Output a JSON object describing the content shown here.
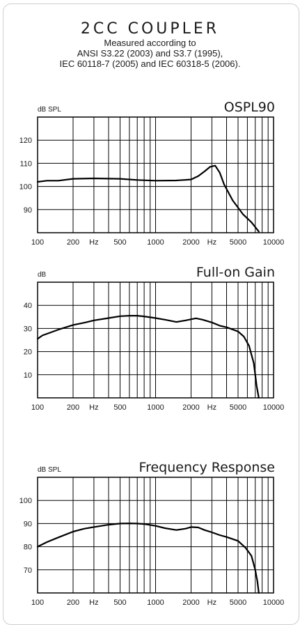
{
  "header": {
    "title": "2CC COUPLER",
    "subtitle_lines": [
      "Measured according to",
      "ANSI S3.22 (2003) and S3.7 (1995),",
      "IEC 60118-7 (2005) and IEC 60318-5 (2006)."
    ]
  },
  "chart_data": [
    {
      "type": "line",
      "title": "OSPL90",
      "ylabel": "dB SPL",
      "xscale": "log",
      "xlim": [
        100,
        10000
      ],
      "ylim": [
        80,
        130
      ],
      "grid": true,
      "x_tick_labels": [
        "100",
        "200",
        "Hz",
        "500",
        "1000",
        "2000",
        "Hz",
        "5000",
        "10000"
      ],
      "y_ticks": [
        90,
        100,
        110,
        120
      ],
      "series": [
        {
          "x": [
            100,
            120,
            150,
            200,
            300,
            500,
            700,
            1000,
            1500,
            2000,
            2300,
            2600,
            2900,
            3200,
            3500,
            3800,
            4500,
            5500,
            6500,
            7500
          ],
          "y": [
            102,
            102.5,
            102.5,
            103.3,
            103.5,
            103.3,
            102.8,
            102.5,
            102.6,
            103,
            104.5,
            106.5,
            108.5,
            109,
            106,
            101,
            94,
            88,
            84.5,
            80.5
          ]
        }
      ]
    },
    {
      "type": "line",
      "title": "Full-on Gain",
      "ylabel": "dB",
      "xscale": "log",
      "xlim": [
        100,
        10000
      ],
      "ylim": [
        0,
        50
      ],
      "grid": true,
      "x_tick_labels": [
        "100",
        "200",
        "Hz",
        "500",
        "1000",
        "2000",
        "Hz",
        "5000",
        "10000"
      ],
      "y_ticks": [
        10,
        20,
        30,
        40
      ],
      "series": [
        {
          "x": [
            100,
            110,
            125,
            150,
            200,
            250,
            300,
            400,
            500,
            600,
            700,
            800,
            1000,
            1200,
            1500,
            1800,
            2200,
            2500,
            3000,
            3500,
            4000,
            5000,
            5600,
            6200,
            6800,
            7200,
            7500
          ],
          "y": [
            25.5,
            27,
            28,
            29.5,
            31.5,
            32.5,
            33.5,
            34.5,
            35.3,
            35.5,
            35.5,
            35.2,
            34.5,
            33.8,
            32.8,
            33.5,
            34.4,
            33.8,
            32.6,
            31.2,
            30.5,
            28.7,
            26.5,
            22.5,
            15,
            5,
            0
          ]
        }
      ]
    },
    {
      "type": "line",
      "title": "Frequency Response",
      "ylabel": "dB SPL",
      "xscale": "log",
      "xlim": [
        100,
        10000
      ],
      "ylim": [
        60,
        110
      ],
      "grid": true,
      "x_tick_labels": [
        "100",
        "200",
        "Hz",
        "500",
        "1000",
        "2000",
        "Hz",
        "5000",
        "10000"
      ],
      "y_ticks": [
        70,
        80,
        90,
        100
      ],
      "series": [
        {
          "x": [
            100,
            120,
            150,
            200,
            250,
            300,
            400,
            500,
            600,
            700,
            800,
            1000,
            1200,
            1500,
            1800,
            2000,
            2300,
            2600,
            3000,
            3500,
            4000,
            5000,
            5800,
            6500,
            7000,
            7300,
            7500
          ],
          "y": [
            80,
            82,
            84,
            86.5,
            87.8,
            88.5,
            89.5,
            90,
            90.1,
            90,
            89.8,
            89,
            88,
            87.2,
            87.8,
            88.5,
            88.3,
            87.2,
            86.2,
            85,
            84.2,
            82.5,
            79.5,
            76,
            70,
            65,
            60
          ]
        }
      ]
    }
  ]
}
